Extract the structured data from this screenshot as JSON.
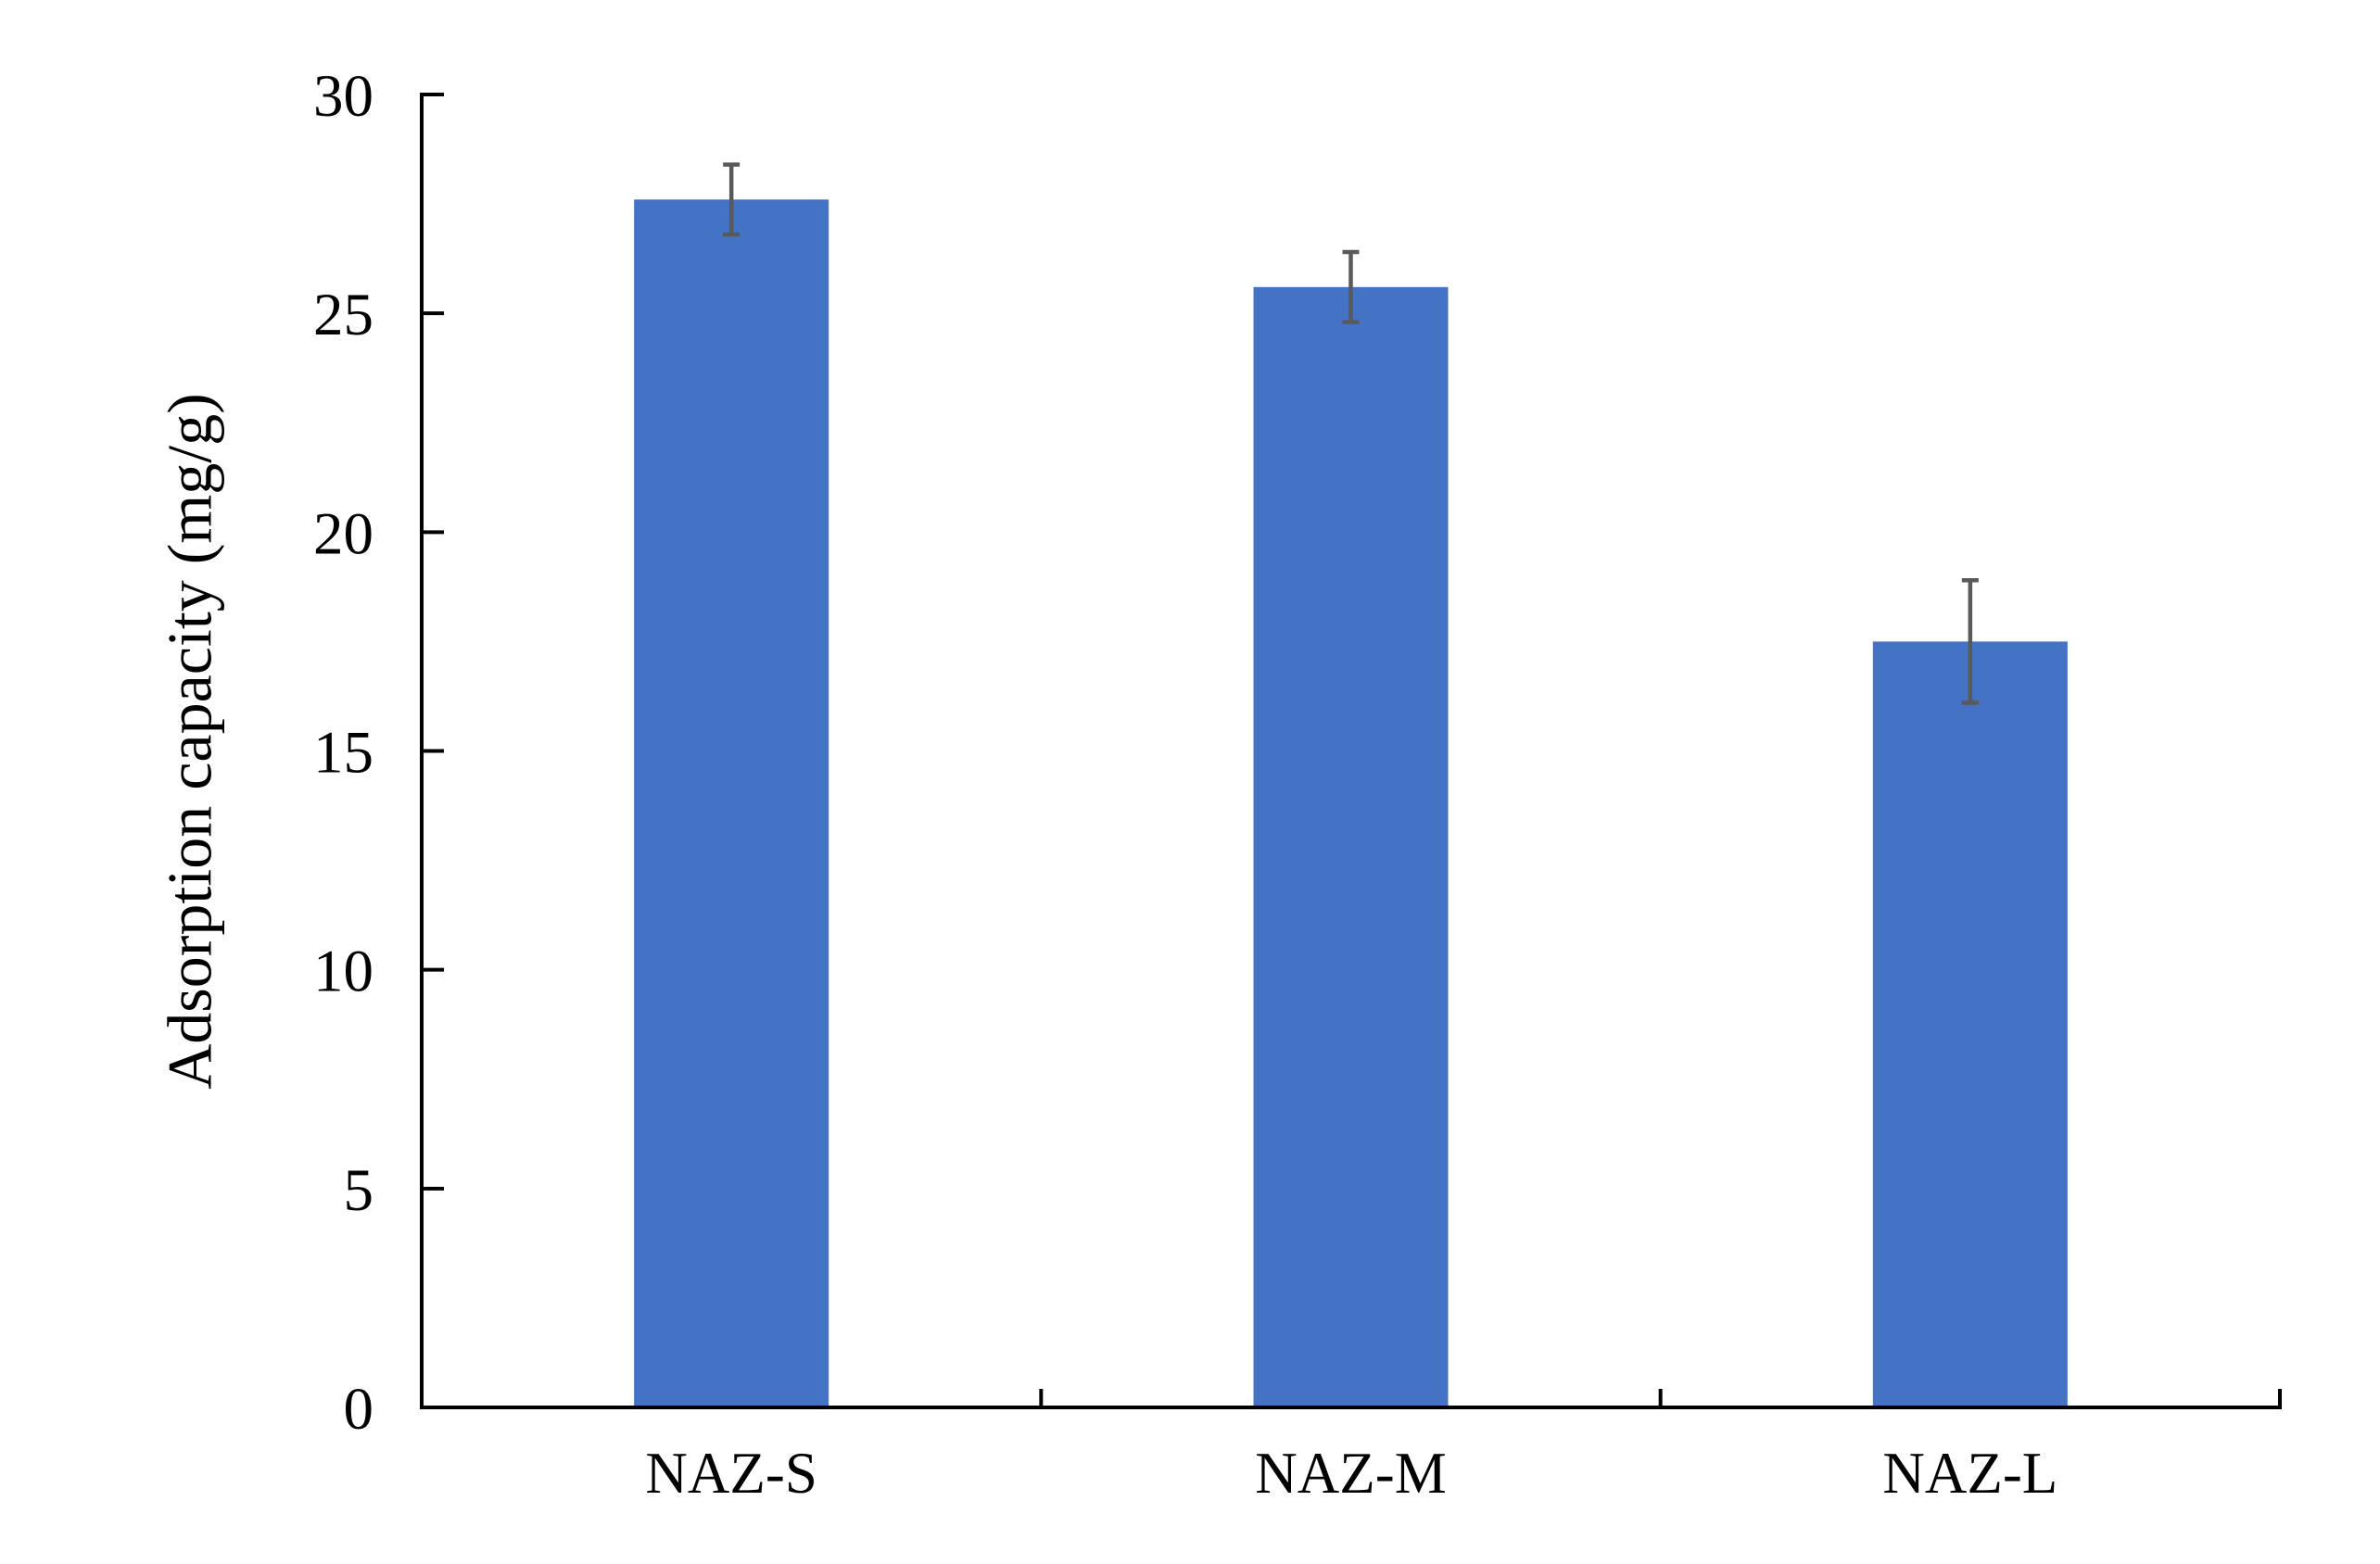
{
  "figure": {
    "background_color": "#ffffff"
  },
  "chart_data": {
    "type": "bar",
    "title": "",
    "xlabel": "",
    "ylabel": "Adsorption capacity (mg/g)",
    "categories": [
      "NAZ-S",
      "NAZ-M",
      "NAZ-L"
    ],
    "values": [
      27.6,
      25.6,
      17.5
    ],
    "error_bars": [
      0.8,
      0.8,
      1.4
    ],
    "ylim": [
      0,
      30
    ],
    "yticks": [
      0,
      5,
      10,
      15,
      20,
      25,
      30
    ],
    "grid": false,
    "legend": "none",
    "bar_color": "#4472C4",
    "error_bar_color": "#595959",
    "axis_color": "#000000",
    "text_color": "#000000"
  }
}
